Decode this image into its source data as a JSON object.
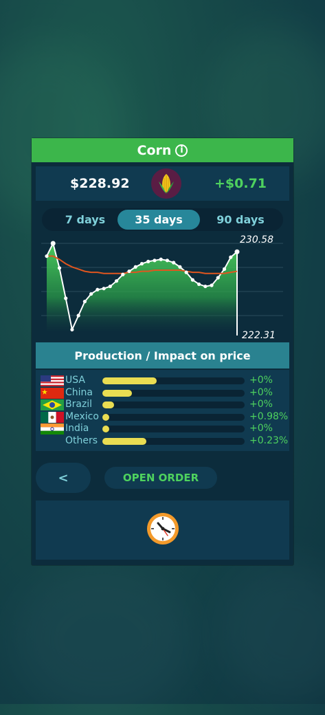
{
  "title": "Corn",
  "icons": {
    "info": "info-icon",
    "commodity": "corn-icon",
    "timer": "clock-icon"
  },
  "price": "$228.92",
  "change": "+$0.71",
  "tabs": [
    {
      "label": "7 days",
      "active": false
    },
    {
      "label": "35 days",
      "active": true
    },
    {
      "label": "90 days",
      "active": false
    }
  ],
  "chart_data": {
    "type": "line",
    "y_max_label": "230.58",
    "y_min_label": "222.31",
    "ylim": [
      222.31,
      230.58
    ],
    "series": [
      {
        "color": "#ffffff",
        "values": [
          229.4,
          230.58,
          228.3,
          225.5,
          222.6,
          223.9,
          225.2,
          225.9,
          226.3,
          226.4,
          226.6,
          227.1,
          227.7,
          228.0,
          228.4,
          228.7,
          228.9,
          229.0,
          229.1,
          229.0,
          228.8,
          228.4,
          227.9,
          227.2,
          226.8,
          226.6,
          226.7,
          227.4,
          228.2,
          229.3,
          229.8
        ]
      },
      {
        "color": "#e0561f",
        "values": [
          229.4,
          229.4,
          229.1,
          228.7,
          228.4,
          228.2,
          228.0,
          227.9,
          227.9,
          227.8,
          227.8,
          227.8,
          227.8,
          227.9,
          227.9,
          228.0,
          228.0,
          228.1,
          228.1,
          228.1,
          228.1,
          228.1,
          228.0,
          227.9,
          227.9,
          227.8,
          227.8,
          227.8,
          227.8,
          227.9,
          228.0
        ]
      }
    ]
  },
  "production": {
    "header": "Production / Impact on price",
    "rows": [
      {
        "country": "USA",
        "level": 0.38,
        "impact": "+0%",
        "flag": "usa-flag-icon"
      },
      {
        "country": "China",
        "level": 0.21,
        "impact": "+0%",
        "flag": "china-flag-icon"
      },
      {
        "country": "Brazil",
        "level": 0.08,
        "impact": "+0%",
        "flag": "brazil-flag-icon"
      },
      {
        "country": "Mexico",
        "level": 0.05,
        "impact": "+0.98%",
        "flag": "mexico-flag-icon"
      },
      {
        "country": "India",
        "level": 0.05,
        "impact": "+0%",
        "flag": "india-flag-icon"
      },
      {
        "country": "Others",
        "level": 0.31,
        "impact": "+0.23%",
        "flag": ""
      }
    ]
  },
  "buttons": {
    "back": "<",
    "open_order": "OPEN ORDER"
  },
  "colors": {
    "accent_green": "#3cb64b",
    "gain": "#4ed25e",
    "bar": "#e9dd52",
    "panel": "#0c2c3c"
  }
}
